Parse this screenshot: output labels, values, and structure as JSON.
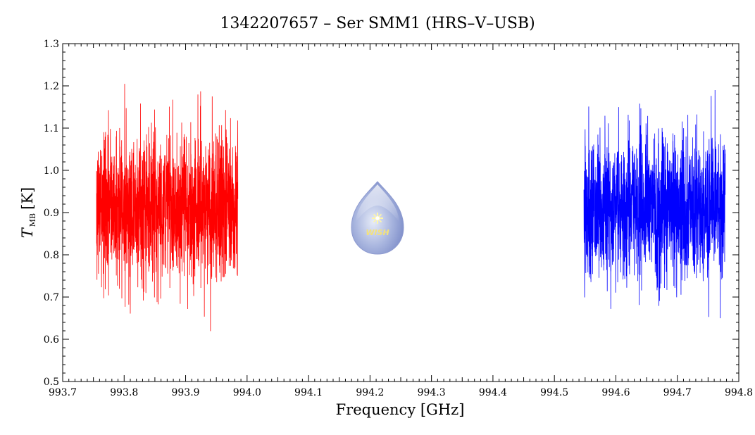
{
  "chart_data": {
    "type": "line",
    "title": "1342207657 – Ser SMM1 (HRS–V–USB)",
    "xlabel": "Frequency [GHz]",
    "ylabel_main": "T",
    "ylabel_sub": "MB",
    "ylabel_unit": "[K]",
    "xlim": [
      993.7,
      994.8
    ],
    "ylim": [
      0.5,
      1.3
    ],
    "xticks": [
      "993.7",
      "993.8",
      "993.9",
      "994.0",
      "994.1",
      "994.2",
      "994.3",
      "994.4",
      "994.5",
      "994.6",
      "994.7",
      "994.8"
    ],
    "yticks": [
      "0.5",
      "0.6",
      "0.7",
      "0.8",
      "0.9",
      "1.0",
      "1.1",
      "1.2",
      "1.3"
    ],
    "grid": false,
    "logo_text": "WISH",
    "series": [
      {
        "color": "#ff0000",
        "x_range": [
          993.755,
          993.985
        ],
        "mean": 0.915,
        "noise_sigma": 0.09,
        "min": 0.565,
        "max": 1.205
      },
      {
        "color": "#0000ff",
        "x_range": [
          994.548,
          994.778
        ],
        "mean": 0.91,
        "noise_sigma": 0.085,
        "min": 0.583,
        "max": 1.19
      }
    ]
  }
}
